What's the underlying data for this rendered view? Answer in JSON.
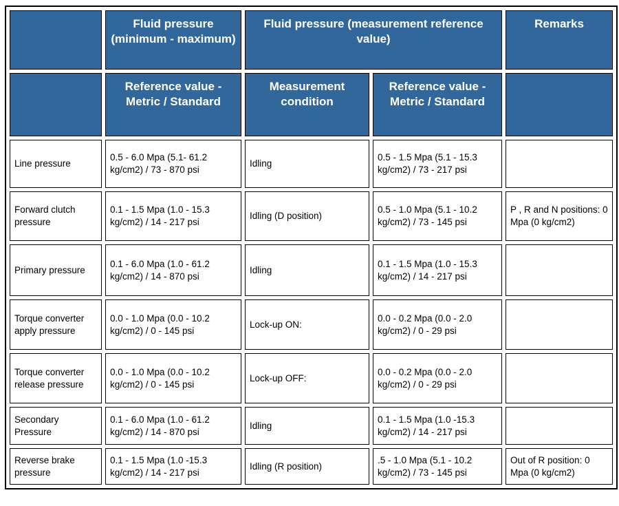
{
  "table": {
    "colors": {
      "header_bg": "#32679C",
      "header_text": "#FFFFFF",
      "body_text": "#000000",
      "border": "#000000"
    },
    "header": {
      "min_max": "Fluid pressure (minimum - maximum)",
      "measurement_group": "Fluid pressure (measurement reference value)",
      "remarks": "Remarks"
    },
    "subheader": {
      "ref_value_1": "Reference value - Metric / Standard",
      "measurement_condition": "Measurement condition",
      "ref_value_2": "Reference value - Metric / Standard"
    },
    "rows": [
      {
        "name": "Line pressure",
        "min_max": "0.5 - 6.0 Mpa (5.1- 61.2 kg/cm2) / 73 - 870 psi",
        "condition": "Idling",
        "ref": "0.5 - 1.5 Mpa (5.1 - 15.3 kg/cm2) / 73 - 217 psi",
        "remarks": ""
      },
      {
        "name": "Forward clutch pressure",
        "min_max": "0.1 - 1.5 Mpa (1.0 - 15.3 kg/cm2) / 14 - 217 psi",
        "condition": "Idling (D position)",
        "ref": "0.5 - 1.0 Mpa (5.1 - 10.2 kg/cm2) / 73 - 145 psi",
        "remarks": "P , R and N positions: 0 Mpa (0 kg/cm2)"
      },
      {
        "name": "Primary pressure",
        "min_max": "0.1 - 6.0 Mpa (1.0 - 61.2 kg/cm2) / 14 - 870 psi",
        "condition": "Idling",
        "ref": "0.1 - 1.5 Mpa (1.0 - 15.3 kg/cm2) / 14 - 217 psi",
        "remarks": ""
      },
      {
        "name": "Torque converter apply pressure",
        "min_max": "0.0 - 1.0 Mpa (0.0 - 10.2 kg/cm2) / 0 - 145 psi",
        "condition": "Lock-up ON:",
        "ref": "0.0 - 0.2 Mpa (0.0 - 2.0 kg/cm2) / 0 - 29 psi",
        "remarks": ""
      },
      {
        "name": "Torque converter release pressure",
        "min_max": "0.0 - 1.0 Mpa (0.0 - 10.2 kg/cm2) / 0 - 145 psi",
        "condition": "Lock-up OFF:",
        "ref": "0.0 - 0.2 Mpa (0.0 - 2.0 kg/cm2) / 0 - 29 psi",
        "remarks": ""
      },
      {
        "name": "Secondary Pressure",
        "min_max": "0.1 - 6.0 Mpa (1.0 - 61.2 kg/cm2) / 14 - 870 psi",
        "condition": "Idling",
        "ref": "0.1 - 1.5 Mpa (1.0 -15.3 kg/cm2) / 14 - 217 psi",
        "remarks": ""
      },
      {
        "name": "Reverse brake pressure",
        "min_max": "0.1 - 1.5 Mpa (1.0 -15.3 kg/cm2) / 14 - 217 psi",
        "condition": "Idling (R position)",
        "ref": ".5 - 1.0 Mpa (5.1 - 10.2 kg/cm2) / 73 - 145 psi",
        "remarks": "Out of R position: 0 Mpa (0 kg/cm2)"
      }
    ]
  }
}
